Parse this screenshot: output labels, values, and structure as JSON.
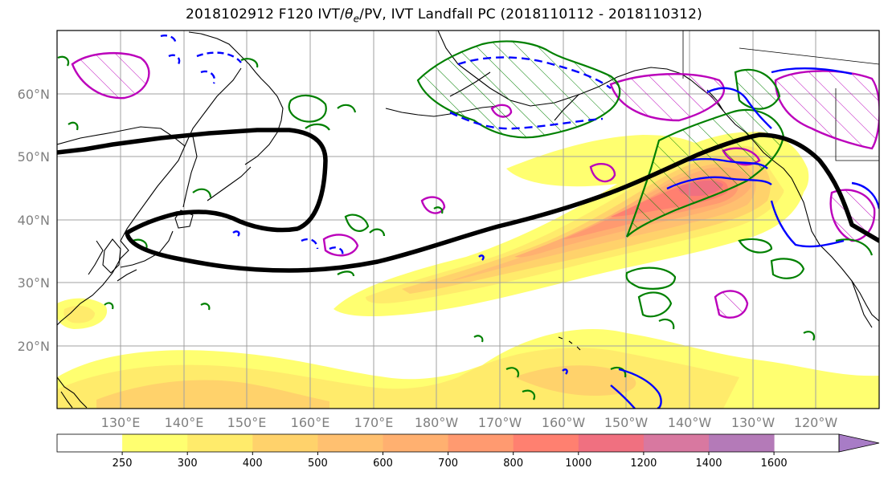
{
  "title": {
    "prefix": "2018102912 F120 IVT/",
    "theta": "θ",
    "theta_sub": "e",
    "suffix": "/PV, IVT Landfall PC (2018110112 - 2018110312)"
  },
  "map": {
    "lat_labels": [
      "60°N",
      "50°N",
      "40°N",
      "30°N",
      "20°N"
    ],
    "lon_labels": [
      "130°E",
      "140°E",
      "150°E",
      "160°E",
      "170°E",
      "180°W",
      "170°W",
      "160°W",
      "150°W",
      "140°W",
      "130°W",
      "120°W"
    ],
    "lat_range": [
      10,
      70
    ],
    "lon_range": [
      120,
      250
    ],
    "grid": true
  },
  "colorbar": {
    "levels": [
      "250",
      "300",
      "400",
      "500",
      "600",
      "700",
      "800",
      "1000",
      "1200",
      "1400",
      "1600"
    ],
    "colors": [
      "#ffffff",
      "#ffff70",
      "#ffeb6b",
      "#ffd26b",
      "#ffc070",
      "#ffb070",
      "#ff9a70",
      "#ff8070",
      "#f07080",
      "#d878a0",
      "#b47ab8",
      "#a87cc6"
    ]
  },
  "contour_colors": {
    "streamline": "#000000",
    "theta_e": "#008000",
    "pv": "#0000ff",
    "landfall_pc": "#bb00bb"
  }
}
